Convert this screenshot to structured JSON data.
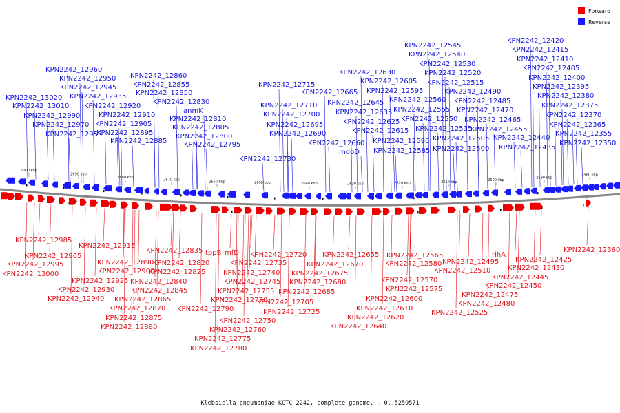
{
  "caption": "Klebsiella pneumoniae KCTC 2242, complete genome. - 0..5259571",
  "legend": [
    {
      "label": "Forward",
      "color": "#ee0000"
    },
    {
      "label": "Reverse",
      "color": "#1a1aff"
    }
  ],
  "colors": {
    "forward": "#ee0000",
    "reverse": "#1a1aff",
    "forward_text": "#e0141e",
    "reverse_text": "#1515d8",
    "backbone": "#888888"
  },
  "scale_ticks": [
    "2700 kbp",
    "2690 kbp",
    "2680 kbp",
    "2670 kbp",
    "2660 kbp",
    "2650 kbp",
    "2640 kbp",
    "2630 kbp",
    "2620 kbp",
    "2610 kbp",
    "2600 kbp",
    "2590 kbp",
    "2580 kbp"
  ],
  "reverse_genes": [
    "KPN2242_13020",
    "KPN2242_13010",
    "KPN2242_12990",
    "KPN2242_12970",
    "KPN2242_12960",
    "KPN2242_12955",
    "KPN2242_12950",
    "KPN2242_12945",
    "KPN2242_12935",
    "KPN2242_12920",
    "KPN2242_12910",
    "KPN2242_12905",
    "KPN2242_12895",
    "KPN2242_12885",
    "KPN2242_12860",
    "KPN2242_12855",
    "KPN2242_12850",
    "KPN2242_12830",
    "anmK",
    "KPN2242_12810",
    "KPN2242_12805",
    "KPN2242_12800",
    "KPN2242_12795",
    "KPN2242_12730",
    "KPN2242_12715",
    "KPN2242_12710",
    "KPN2242_12700",
    "KPN2242_12695",
    "KPN2242_12690",
    "KPN2242_12665",
    "KPN2242_12660",
    "mdoD",
    "KPN2242_12645",
    "KPN2242_12635",
    "KPN2242_12630",
    "KPN2242_12625",
    "KPN2242_12615",
    "KPN2242_12605",
    "KPN2242_12595",
    "KPN2242_12590",
    "KPN2242_12585",
    "KPN2242_12560",
    "KPN2242_12555",
    "KPN2242_12550",
    "KPN2242_12545",
    "KPN2242_12540",
    "KPN2242_12535",
    "KPN2242_12530",
    "KPN2242_12520",
    "KPN2242_12515",
    "KPN2242_12505",
    "KPN2242_12500",
    "KPN2242_12490",
    "KPN2242_12485",
    "KPN2242_12470",
    "KPN2242_12465",
    "KPN2242_12455",
    "KPN2242_12440",
    "KPN2242_12435",
    "KPN2242_12420",
    "KPN2242_12415",
    "KPN2242_12410",
    "KPN2242_12405",
    "KPN2242_12400",
    "KPN2242_12395",
    "KPN2242_12380",
    "KPN2242_12375",
    "KPN2242_12370",
    "KPN2242_12365",
    "KPN2242_12355",
    "KPN2242_12350"
  ],
  "forward_genes": [
    "KPN2242_12985",
    "KPN2242_12965",
    "KPN2242_12995",
    "KPN2242_13000",
    "KPN2242_12915",
    "KPN2242_12890",
    "KPN2242_12925",
    "KPN2242_12900",
    "KPN2242_12930",
    "KPN2242_12940",
    "KPN2242_12835",
    "KPN2242_12820",
    "KPN2242_12825",
    "KPN2242_12840",
    "KPN2242_12845",
    "KPN2242_12865",
    "KPN2242_12870",
    "KPN2242_12875",
    "KPN2242_12880",
    "tppB",
    "mfD",
    "KPN2242_12720",
    "KPN2242_12735",
    "KPN2242_12740",
    "KPN2242_12745",
    "KPN2242_12755",
    "KPN2242_12770",
    "KPN2242_12790",
    "KPN2242_12750",
    "KPN2242_12760",
    "KPN2242_12775",
    "KPN2242_12780",
    "KPN2242_12670",
    "KPN2242_12675",
    "KPN2242_12680",
    "KPN2242_12685",
    "KPN2242_12705",
    "KPN2242_12725",
    "KPN2242_12655",
    "KPN2242_12565",
    "KPN2242_12580",
    "KPN2242_12570",
    "KPN2242_12575",
    "KPN2242_12600",
    "KPN2242_12610",
    "KPN2242_12620",
    "KPN2242_12640",
    "KPN2242_12495",
    "rihA",
    "KPN2242_12510",
    "KPN2242_12475",
    "KPN2242_12480",
    "KPN2242_12525",
    "KPN2242_12445",
    "KPN2242_12450",
    "KPN2242_12425",
    "KPN2242_12430",
    "KPN2242_12360"
  ]
}
